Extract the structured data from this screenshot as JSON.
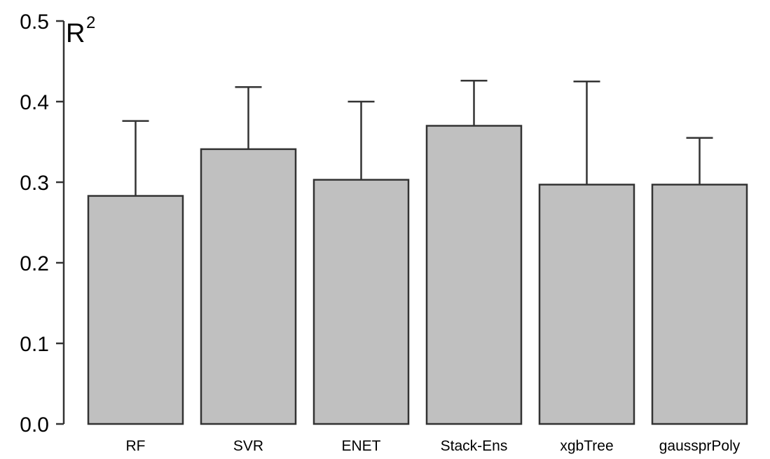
{
  "chart_data": {
    "type": "bar",
    "title": "",
    "xlabel": "",
    "ylabel": "R",
    "ylabel_superscript": "2",
    "categories": [
      "RF",
      "SVR",
      "ENET",
      "Stack-Ens",
      "xgbTree",
      "gaussprPoly"
    ],
    "values": [
      0.283,
      0.341,
      0.303,
      0.37,
      0.297,
      0.297
    ],
    "error_upper": [
      0.376,
      0.418,
      0.4,
      0.426,
      0.425,
      0.355
    ],
    "ylim": [
      0,
      0.5
    ],
    "yticks": [
      "0.0",
      "0.1",
      "0.2",
      "0.3",
      "0.4",
      "0.5"
    ],
    "grid": false,
    "legend": "none",
    "bar_color": "#c0c0c0",
    "edge_color": "#333333"
  }
}
